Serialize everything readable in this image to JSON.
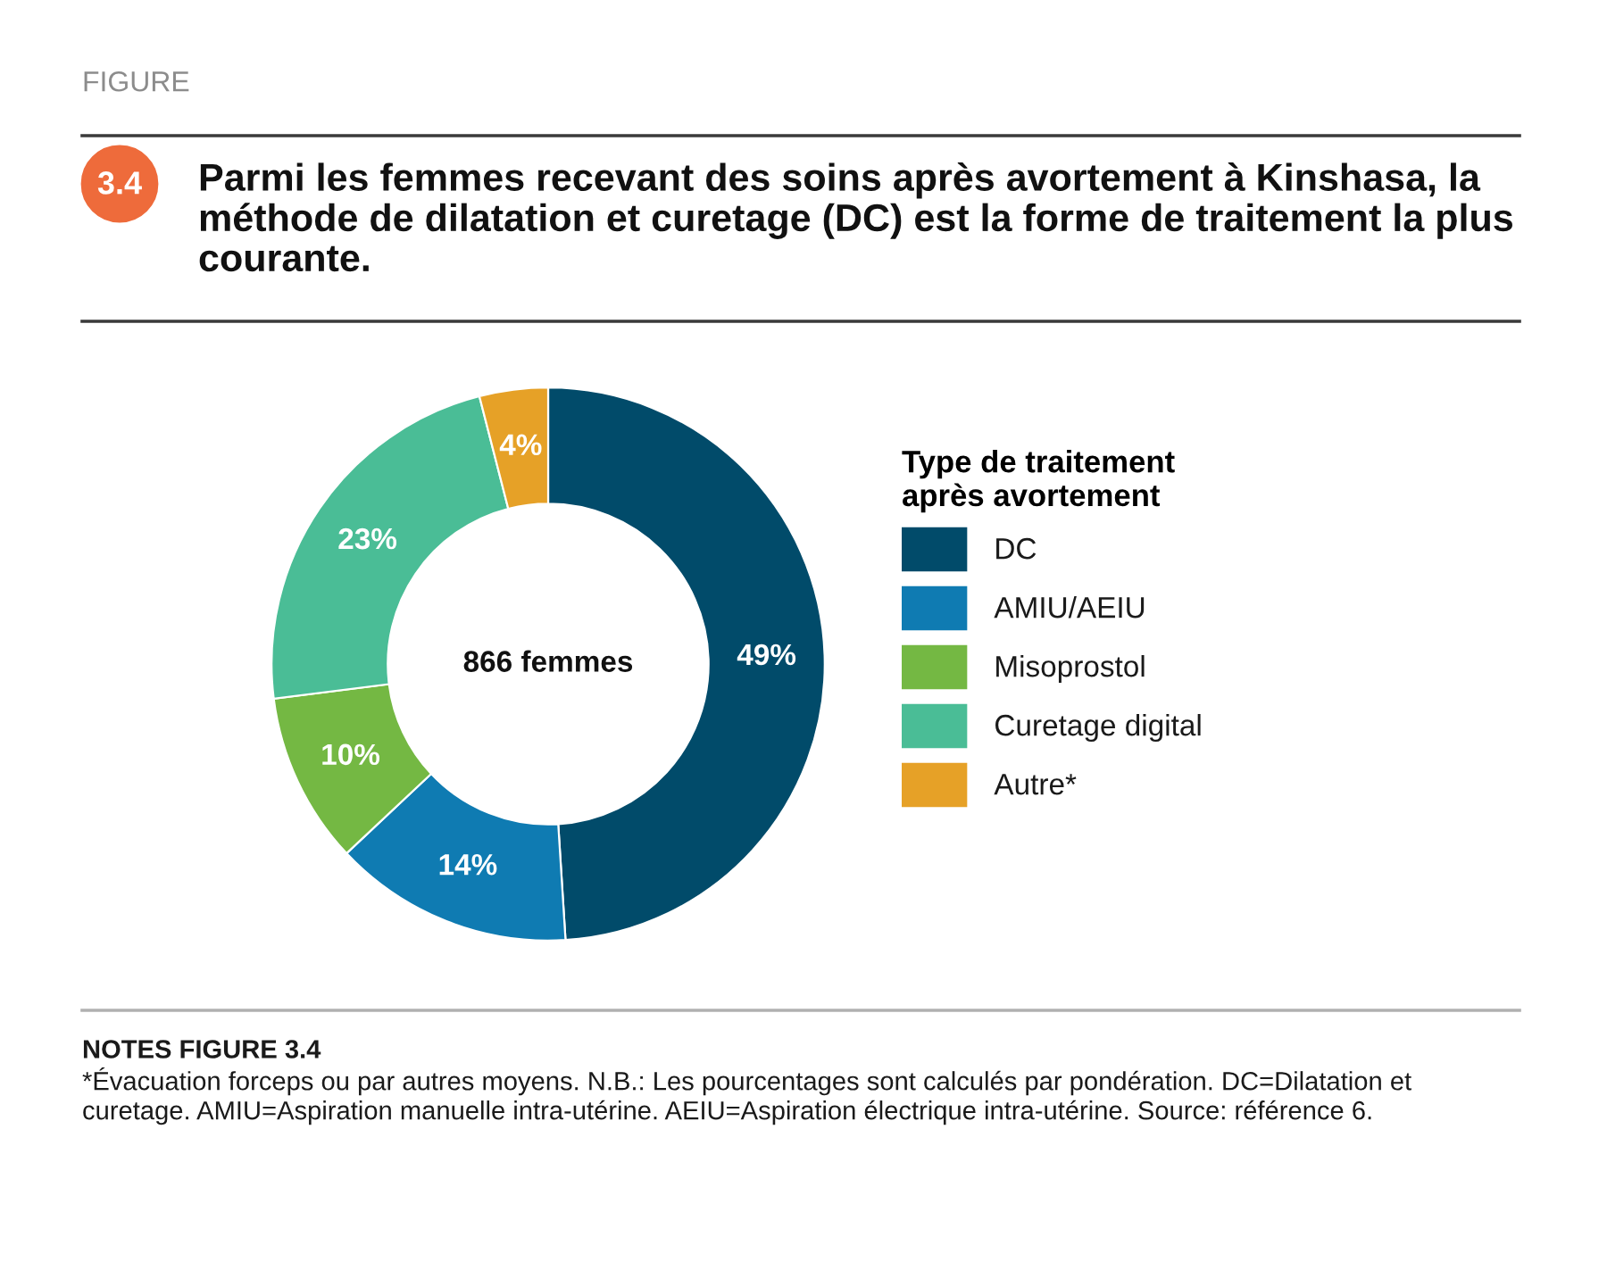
{
  "chart_data": {
    "type": "donut",
    "title": "Parmi les femmes recevant des soins après avortement à Kinshasa, la méthode de dilatation et curetage (DC) est la forme de traitement la plus courante.",
    "categories": [
      "DC",
      "AMIU/AEIU",
      "Misoprostol",
      "Curetage digital",
      "Autre*"
    ],
    "values": [
      49,
      14,
      10,
      23,
      4
    ],
    "colors": [
      "#014b6a",
      "#0f7bb2",
      "#74b843",
      "#4abd96",
      "#e6a127"
    ],
    "value_labels": [
      "49%",
      "14%",
      "10%",
      "23%",
      "4%"
    ],
    "legend_title": "Type de traitement après avortement",
    "legend": "right",
    "annotations": [
      "FIGURE",
      "3.4",
      "866 femmes",
      "NOTES FIGURE 3.4",
      "*Évacuation forceps ou par autres moyens. N.B.: Les pourcentages sont calculés par pondération. DC=Dilatation et curetage. AMIU=Aspiration manuelle intra-utérine. AEIU=Aspiration électrique intra-utérine. Source: référence 6."
    ]
  }
}
